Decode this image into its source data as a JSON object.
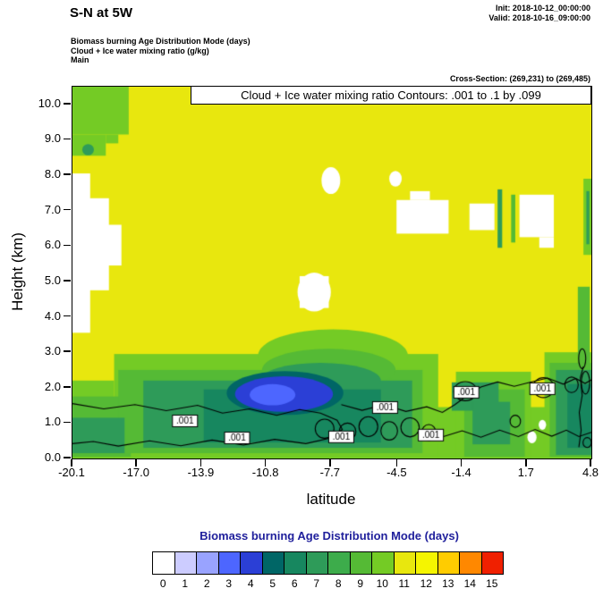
{
  "header": {
    "title": "S-N at 5W",
    "init": "Init: 2018-10-12_00:00:00",
    "valid": "Valid: 2018-10-16_09:00:00",
    "field_lines": [
      "Biomass burning Age Distribution Mode   (days)",
      "Cloud + Ice water mixing ratio   (g/kg)",
      "Main"
    ],
    "cross_section": "Cross-Section: (269,231) to (269,485)"
  },
  "plot": {
    "title_box": "Cloud + Ice water mixing ratio Contours: .001 to .1 by .099",
    "xlabel": "latitude",
    "ylabel": "Height (km)",
    "x_tick_labels": [
      "-20.1",
      "-17.0",
      "-13.9",
      "-10.8",
      "-7.7",
      "-4.5",
      "-1.4",
      "1.7",
      "4.8"
    ],
    "y_tick_labels": [
      "0.0",
      "1.0",
      "2.0",
      "3.0",
      "4.0",
      "5.0",
      "6.0",
      "7.0",
      "8.0",
      "9.0",
      "10.0"
    ]
  },
  "colorbar": {
    "title": "Biomass burning Age Distribution Mode  (days)",
    "title_color": "#20209c",
    "labels": [
      "0",
      "1",
      "2",
      "3",
      "4",
      "5",
      "6",
      "7",
      "8",
      "9",
      "10",
      "11",
      "12",
      "13",
      "14",
      "15"
    ]
  },
  "chart_data": {
    "type": "heatmap",
    "title": "Cloud + Ice water mixing ratio Contours: .001 to .1 by .099",
    "xlabel": "latitude",
    "ylabel": "Height (km)",
    "x_range": [
      -20.1,
      4.8
    ],
    "y_range": [
      0,
      10.5
    ],
    "x_tick_values": [
      -20.1,
      -17.0,
      -13.9,
      -10.8,
      -7.7,
      -4.5,
      -1.4,
      1.7,
      4.8
    ],
    "y_tick_values": [
      0,
      1,
      2,
      3,
      4,
      5,
      6,
      7,
      8,
      9,
      10
    ],
    "value_name": "Biomass burning Age Distribution Mode (days)",
    "value_range": [
      0,
      15
    ],
    "background_value": 11,
    "palette": [
      "#ffffff",
      "#ccccff",
      "#99a3ff",
      "#4d66ff",
      "#2b3fd6",
      "#006666",
      "#17875f",
      "#2e9b59",
      "#3dac4b",
      "#55ba35",
      "#74cb25",
      "#e8e70e",
      "#f5f500",
      "#ffcc00",
      "#ff8800",
      "#f02000"
    ],
    "regions": [
      {
        "shape": "rect",
        "value": 10,
        "coords": [
          -20.1,
          0,
          4.8,
          1.45
        ]
      },
      {
        "shape": "rect",
        "value": 10,
        "coords": [
          -18.1,
          0,
          -2.55,
          2.95
        ]
      },
      {
        "shape": "ellipse",
        "value": 10,
        "coords": [
          -7.6,
          2.9,
          3.6,
          0.75
        ]
      },
      {
        "shape": "rect",
        "value": 10,
        "coords": [
          -20.1,
          0,
          -18.1,
          2.2
        ]
      },
      {
        "shape": "rect",
        "value": 10,
        "coords": [
          -1.7,
          0,
          1.9,
          2.45
        ]
      },
      {
        "shape": "rect",
        "value": 10,
        "coords": [
          2.55,
          0,
          4.8,
          3.0
        ]
      },
      {
        "shape": "rect",
        "value": 9,
        "coords": [
          4.15,
          2.6,
          4.72,
          4.85
        ]
      },
      {
        "shape": "rect",
        "value": 9,
        "coords": [
          -20.1,
          0.05,
          -17.3,
          1.75
        ]
      },
      {
        "shape": "rect",
        "value": 9,
        "coords": [
          -17.9,
          0.15,
          -3.3,
          2.5
        ]
      },
      {
        "shape": "ellipse",
        "value": 9,
        "coords": [
          -7.8,
          2.5,
          3.2,
          0.6
        ]
      },
      {
        "shape": "rect",
        "value": 9,
        "coords": [
          -1.3,
          0.05,
          1.6,
          1.95
        ]
      },
      {
        "shape": "rect",
        "value": 9,
        "coords": [
          2.8,
          0.05,
          4.8,
          2.7
        ]
      },
      {
        "shape": "rect",
        "value": 7,
        "coords": [
          -16.7,
          0.3,
          -3.8,
          2.2
        ]
      },
      {
        "shape": "ellipse",
        "value": 7,
        "coords": [
          -8.2,
          2.2,
          2.9,
          0.5
        ]
      },
      {
        "shape": "rect",
        "value": 7,
        "coords": [
          -20.1,
          0.15,
          -17.6,
          1.15
        ]
      },
      {
        "shape": "rect",
        "value": 6,
        "coords": [
          -13.8,
          0.45,
          -5.3,
          1.95
        ]
      },
      {
        "shape": "rect",
        "value": 7,
        "coords": [
          -1.9,
          1.35,
          0.35,
          2.15
        ]
      },
      {
        "shape": "rect",
        "value": 7,
        "coords": [
          -0.9,
          0.4,
          0.9,
          1.6
        ]
      },
      {
        "shape": "rect",
        "value": 7,
        "coords": [
          3.1,
          0.1,
          4.8,
          2.5
        ]
      },
      {
        "shape": "rect",
        "value": 6,
        "coords": [
          3.65,
          0.3,
          4.8,
          2.1
        ]
      },
      {
        "shape": "ellipse",
        "value": 5,
        "coords": [
          -9.9,
          1.85,
          2.8,
          0.62
        ]
      },
      {
        "shape": "ellipse",
        "value": 4,
        "coords": [
          -9.95,
          1.82,
          2.35,
          0.5
        ]
      },
      {
        "shape": "ellipse",
        "value": 3,
        "coords": [
          -10.5,
          1.8,
          1.1,
          0.3
        ]
      },
      {
        "shape": "rect",
        "value": 10,
        "coords": [
          -20.1,
          9.15,
          -17.4,
          10.5
        ]
      },
      {
        "shape": "rect",
        "value": 10,
        "coords": [
          -20.1,
          8.55,
          -18.5,
          9.15
        ]
      },
      {
        "shape": "rect",
        "value": 10,
        "coords": [
          -18.5,
          8.9,
          -17.9,
          9.15
        ]
      },
      {
        "shape": "ellipse",
        "value": 7,
        "coords": [
          -19.35,
          8.72,
          0.28,
          0.16
        ]
      },
      {
        "shape": "rect",
        "value": 0,
        "coords": [
          -20.1,
          3.55,
          -19.25,
          8.05
        ]
      },
      {
        "shape": "rect",
        "value": 0,
        "coords": [
          -20.1,
          4.75,
          -18.35,
          7.35
        ]
      },
      {
        "shape": "rect",
        "value": 0,
        "coords": [
          -19.3,
          5.45,
          -17.75,
          6.6
        ]
      },
      {
        "shape": "rect",
        "value": 0,
        "coords": [
          -9.2,
          4.25,
          -7.8,
          5.15
        ]
      },
      {
        "shape": "ellipse",
        "value": 0,
        "coords": [
          -8.5,
          4.7,
          0.8,
          0.55
        ]
      },
      {
        "shape": "ellipse",
        "value": 0,
        "coords": [
          -7.7,
          7.85,
          0.45,
          0.38
        ]
      },
      {
        "shape": "rect",
        "value": 0,
        "coords": [
          -4.55,
          6.35,
          -2.05,
          7.3
        ]
      },
      {
        "shape": "rect",
        "value": 0,
        "coords": [
          -3.9,
          7.3,
          -2.95,
          7.55
        ]
      },
      {
        "shape": "ellipse",
        "value": 0,
        "coords": [
          -4.6,
          7.9,
          0.3,
          0.22
        ]
      },
      {
        "shape": "rect",
        "value": 0,
        "coords": [
          -1.05,
          6.45,
          0.15,
          7.2
        ]
      },
      {
        "shape": "rect",
        "value": 0,
        "coords": [
          1.35,
          6.25,
          3.0,
          7.45
        ]
      },
      {
        "shape": "rect",
        "value": 0,
        "coords": [
          2.3,
          5.95,
          3.0,
          6.25
        ]
      },
      {
        "shape": "rect",
        "value": 7,
        "coords": [
          0.3,
          5.95,
          0.52,
          7.6
        ]
      },
      {
        "shape": "rect",
        "value": 9,
        "coords": [
          0.95,
          6.1,
          1.15,
          7.45
        ]
      },
      {
        "shape": "rect",
        "value": 10,
        "coords": [
          4.42,
          5.75,
          4.8,
          7.9
        ]
      },
      {
        "shape": "rect",
        "value": 7,
        "coords": [
          4.56,
          6.05,
          4.7,
          7.55
        ]
      },
      {
        "shape": "ellipse",
        "value": 0,
        "coords": [
          1.95,
          0.6,
          0.22,
          0.17
        ]
      },
      {
        "shape": "ellipse",
        "value": 0,
        "coords": [
          2.45,
          0.95,
          0.18,
          0.14
        ]
      }
    ],
    "contours": {
      "level_label": ".001",
      "levels": ".001 to .1 by .099",
      "color": "#000000",
      "paths": [
        [
          [
            -20.1,
            1.55
          ],
          [
            -18.6,
            1.4
          ],
          [
            -17.1,
            1.52
          ],
          [
            -15.6,
            1.35
          ],
          [
            -14.1,
            1.5
          ],
          [
            -12.9,
            1.28
          ],
          [
            -11.6,
            1.4
          ],
          [
            -10.3,
            1.22
          ],
          [
            -9.2,
            1.38
          ],
          [
            -8.2,
            1.28
          ],
          [
            -7.4,
            1.08
          ],
          [
            -7.15,
            0.82
          ],
          [
            -7.7,
            0.58
          ],
          [
            -8.9,
            0.42
          ],
          [
            -10.4,
            0.54
          ],
          [
            -11.9,
            0.38
          ],
          [
            -13.4,
            0.52
          ],
          [
            -14.9,
            0.36
          ],
          [
            -16.4,
            0.5
          ],
          [
            -17.9,
            0.35
          ],
          [
            -19.1,
            0.48
          ],
          [
            -20.1,
            0.42
          ]
        ],
        [
          [
            -7.2,
            1.52
          ],
          [
            -6.2,
            1.36
          ],
          [
            -5.15,
            1.52
          ],
          [
            -4.1,
            1.33
          ],
          [
            -3.1,
            1.46
          ],
          [
            -2.35,
            1.3
          ],
          [
            -1.75,
            1.52
          ],
          [
            -1.15,
            1.78
          ],
          [
            -0.5,
            2.02
          ],
          [
            0.3,
            2.16
          ],
          [
            1.1,
            2.04
          ],
          [
            1.9,
            2.16
          ],
          [
            2.7,
            2.27
          ],
          [
            3.45,
            2.1
          ],
          [
            4.05,
            2.26
          ],
          [
            4.5,
            2.12
          ],
          [
            4.8,
            2.22
          ]
        ],
        [
          [
            -2.3,
            0.62
          ],
          [
            -1.4,
            0.78
          ],
          [
            -0.5,
            0.6
          ],
          [
            0.4,
            0.8
          ],
          [
            1.3,
            0.62
          ],
          [
            2.1,
            0.82
          ],
          [
            2.9,
            0.63
          ],
          [
            3.6,
            0.8
          ],
          [
            4.2,
            0.62
          ],
          [
            4.8,
            0.74
          ]
        ],
        [
          [
            4.2,
            0.32
          ],
          [
            4.31,
            0.8
          ],
          [
            4.22,
            1.3
          ],
          [
            4.36,
            1.78
          ],
          [
            4.27,
            2.28
          ],
          [
            4.42,
            2.6
          ]
        ]
      ],
      "loops": [
        [
          -8.0,
          0.84,
          0.45,
          0.27
        ],
        [
          -6.9,
          0.76,
          0.4,
          0.24
        ],
        [
          -5.9,
          0.9,
          0.45,
          0.28
        ],
        [
          -4.9,
          0.78,
          0.4,
          0.26
        ],
        [
          -3.9,
          0.88,
          0.44,
          0.27
        ],
        [
          -3.0,
          0.73,
          0.34,
          0.23
        ],
        [
          -1.25,
          1.9,
          0.55,
          0.27
        ],
        [
          2.5,
          2.0,
          0.5,
          0.28
        ],
        [
          3.85,
          2.08,
          0.32,
          0.22
        ],
        [
          4.52,
          2.14,
          0.2,
          0.32
        ],
        [
          4.36,
          2.82,
          0.17,
          0.28
        ],
        [
          1.15,
          1.05,
          0.25,
          0.17
        ],
        [
          4.6,
          0.45,
          0.2,
          0.14
        ]
      ],
      "labels": [
        {
          "x": -14.7,
          "y": 1.06
        },
        {
          "x": -12.2,
          "y": 0.58
        },
        {
          "x": -7.2,
          "y": 0.61
        },
        {
          "x": -5.1,
          "y": 1.44
        },
        {
          "x": -2.9,
          "y": 0.66
        },
        {
          "x": -1.2,
          "y": 1.87
        },
        {
          "x": 2.45,
          "y": 1.97
        }
      ]
    }
  }
}
